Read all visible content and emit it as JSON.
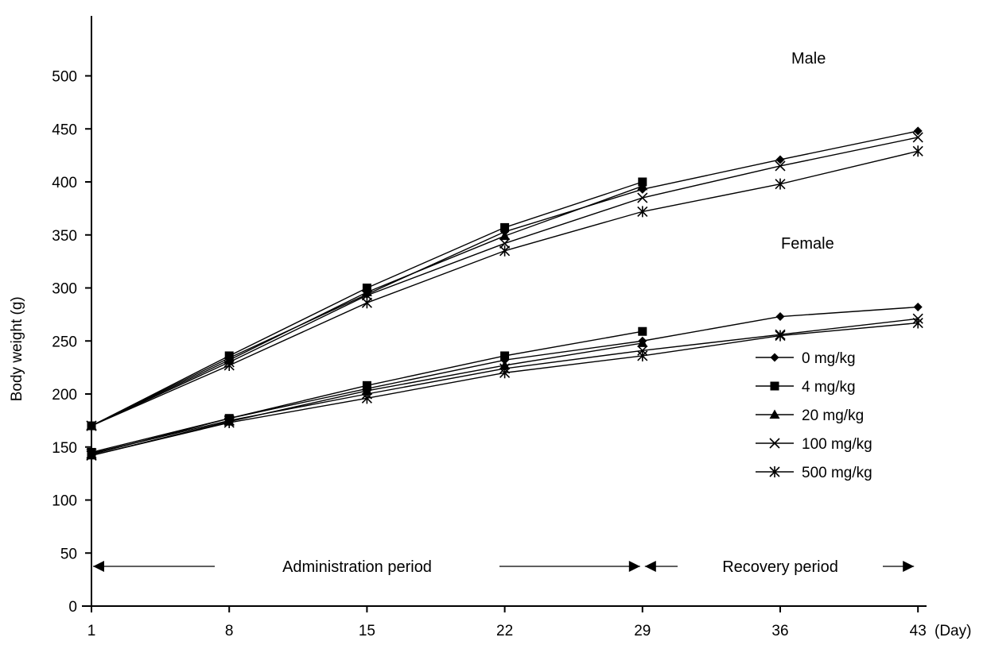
{
  "chart_data": {
    "type": "line",
    "xlabel": "(Day)",
    "ylabel": "Body weight (g)",
    "x": [
      1,
      8,
      15,
      22,
      29,
      36,
      43
    ],
    "x_ticks": [
      "1",
      "8",
      "15",
      "22",
      "29",
      "36",
      "43"
    ],
    "ylim": [
      0,
      500
    ],
    "y_ticks": [
      "0",
      "50",
      "100",
      "150",
      "200",
      "250",
      "300",
      "350",
      "400",
      "450",
      "500"
    ],
    "grid": false,
    "legend_position": "right",
    "groups": [
      {
        "label": "Male",
        "series": [
          {
            "name": "0 mg/kg",
            "marker": "diamond",
            "values": [
              170,
              234,
              294,
              353,
              393,
              421,
              448
            ]
          },
          {
            "name": "4 mg/kg",
            "marker": "square",
            "values": [
              170,
              236,
              300,
              357,
              400,
              null,
              null
            ]
          },
          {
            "name": "20 mg/kg",
            "marker": "triangle",
            "values": [
              170,
              232,
              296,
              349,
              396,
              null,
              null
            ]
          },
          {
            "name": "100 mg/kg",
            "marker": "x",
            "values": [
              170,
              230,
              293,
              342,
              385,
              415,
              442
            ]
          },
          {
            "name": "500 mg/kg",
            "marker": "star",
            "values": [
              170,
              227,
              286,
              335,
              372,
              398,
              429
            ]
          }
        ]
      },
      {
        "label": "Female",
        "series": [
          {
            "name": "0 mg/kg",
            "marker": "diamond",
            "values": [
              143,
              177,
              205,
              232,
              250,
              273,
              282
            ]
          },
          {
            "name": "4 mg/kg",
            "marker": "square",
            "values": [
              145,
              177,
              208,
              236,
              259,
              null,
              null
            ]
          },
          {
            "name": "20 mg/kg",
            "marker": "triangle",
            "values": [
              142,
              174,
              203,
              227,
              248,
              null,
              null
            ]
          },
          {
            "name": "100 mg/kg",
            "marker": "x",
            "values": [
              144,
              175,
              200,
              224,
              241,
              256,
              271
            ]
          },
          {
            "name": "500 mg/kg",
            "marker": "star",
            "values": [
              142,
              173,
              196,
              220,
              236,
              255,
              267
            ]
          }
        ]
      }
    ],
    "legend": [
      "0 mg/kg",
      "4 mg/kg",
      "20 mg/kg",
      "100 mg/kg",
      "500 mg/kg"
    ],
    "periods": [
      {
        "label": "Administration period",
        "from": 1,
        "to": 29
      },
      {
        "label": "Recovery period",
        "from": 29,
        "to": 43
      }
    ]
  }
}
